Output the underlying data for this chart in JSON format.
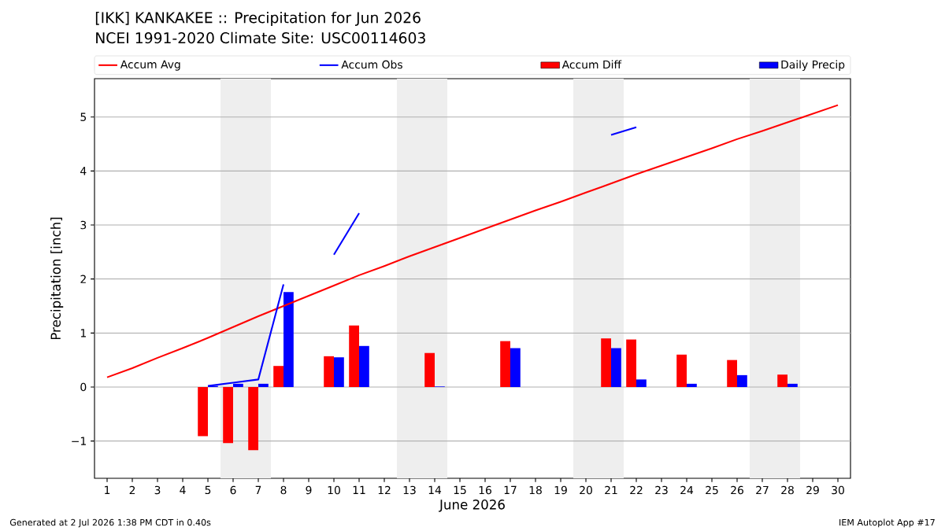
{
  "chart_data": {
    "type": "bar",
    "title": "[IKK] KANKAKEE :: Precipitation for Jun 2026",
    "subtitle": "NCEI 1991-2020 Climate Site: USC00114603",
    "xlabel": "June 2026",
    "ylabel": "Precipitation [inch]",
    "x": [
      1,
      2,
      3,
      4,
      5,
      6,
      7,
      8,
      9,
      10,
      11,
      12,
      13,
      14,
      15,
      16,
      17,
      18,
      19,
      20,
      21,
      22,
      23,
      24,
      25,
      26,
      27,
      28,
      29,
      30
    ],
    "xlim": [
      0.5,
      30.5
    ],
    "xticks": [
      1,
      2,
      3,
      4,
      5,
      6,
      7,
      8,
      9,
      10,
      11,
      12,
      13,
      14,
      15,
      16,
      17,
      18,
      19,
      20,
      21,
      22,
      23,
      24,
      25,
      26,
      27,
      28,
      29,
      30
    ],
    "ylim": [
      -1.69,
      5.71
    ],
    "yticks": [
      {
        "value": -1,
        "label": "−1"
      },
      0,
      1,
      2,
      3,
      4,
      5
    ],
    "grid": "y",
    "legend": "top",
    "series": [
      {
        "name": "Accum Avg",
        "type": "line",
        "color": "#ff0000",
        "values": [
          0.18,
          0.35,
          0.54,
          0.72,
          0.91,
          1.11,
          1.31,
          1.5,
          1.69,
          1.88,
          2.07,
          2.24,
          2.42,
          2.59,
          2.76,
          2.93,
          3.1,
          3.27,
          3.43,
          3.6,
          3.77,
          3.94,
          4.1,
          4.26,
          4.42,
          4.59,
          4.74,
          4.9,
          5.06,
          5.22
        ]
      },
      {
        "name": "Accum Obs",
        "type": "line",
        "color": "#0000ff",
        "values": [
          null,
          null,
          null,
          null,
          0.02,
          0.08,
          0.14,
          1.9,
          null,
          2.45,
          3.22,
          null,
          null,
          null,
          null,
          null,
          null,
          null,
          null,
          null,
          4.67,
          4.81,
          null,
          null,
          null,
          null,
          null,
          null,
          null,
          null
        ]
      },
      {
        "name": "Accum Diff",
        "color": "#ff0000",
        "values": [
          null,
          null,
          null,
          null,
          -0.91,
          -1.04,
          -1.17,
          0.39,
          null,
          0.57,
          1.14,
          null,
          null,
          0.63,
          null,
          null,
          0.85,
          null,
          null,
          null,
          0.9,
          0.88,
          null,
          0.6,
          null,
          0.5,
          null,
          0.23,
          null,
          null
        ]
      },
      {
        "name": "Daily Precip",
        "color": "#0000ff",
        "values": [
          null,
          null,
          null,
          null,
          0.02,
          0.06,
          0.06,
          1.76,
          null,
          0.55,
          0.76,
          null,
          null,
          0.01,
          null,
          null,
          0.72,
          null,
          null,
          null,
          0.72,
          0.14,
          null,
          0.06,
          null,
          0.22,
          null,
          0.06,
          null,
          null
        ]
      }
    ],
    "bands": [
      {
        "axis": "x",
        "from": 5.5,
        "to": 7.5,
        "color": "#eeeeee"
      },
      {
        "axis": "x",
        "from": 12.5,
        "to": 14.5,
        "color": "#eeeeee"
      },
      {
        "axis": "x",
        "from": 19.5,
        "to": 21.5,
        "color": "#eeeeee"
      },
      {
        "axis": "x",
        "from": 26.5,
        "to": 28.5,
        "color": "#eeeeee"
      }
    ],
    "annotations": [
      "Generated at 2 Jul 2026 1:38 PM CDT in 0.40s",
      "IEM Autoplot App #17"
    ]
  }
}
